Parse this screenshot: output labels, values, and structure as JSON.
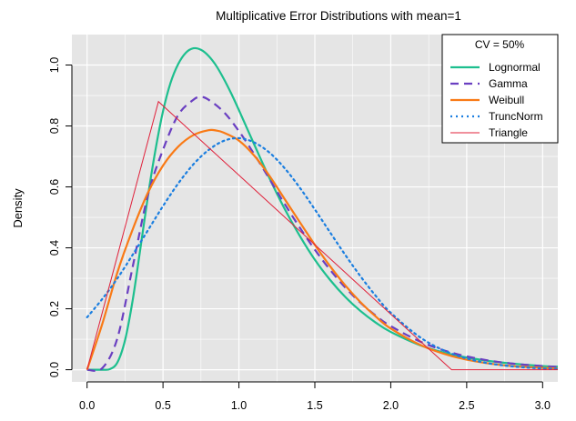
{
  "chart_data": {
    "type": "line",
    "title": "Multiplicative Error Distributions with mean=1",
    "xlabel": "",
    "ylabel": "Density",
    "xlim": [
      -0.1,
      3.1
    ],
    "ylim": [
      -0.04,
      1.1
    ],
    "x_ticks": [
      0.0,
      0.5,
      1.0,
      1.5,
      2.0,
      2.5,
      3.0
    ],
    "x_tick_labels": [
      "0.0",
      "0.5",
      "1.0",
      "1.5",
      "2.0",
      "2.5",
      "3.0"
    ],
    "y_ticks": [
      0.0,
      0.2,
      0.4,
      0.6,
      0.8,
      1.0
    ],
    "y_tick_labels": [
      "0.0",
      "0.2",
      "0.4",
      "0.6",
      "0.8",
      "1.0"
    ],
    "background": "#e5e5e5",
    "grid": true,
    "legend": {
      "title": "CV = 50%",
      "position": "top-right"
    },
    "series": [
      {
        "name": "Lognormal",
        "color": "#1dbf8e",
        "style": "solid",
        "x": [
          0.0,
          0.1,
          0.15,
          0.2,
          0.25,
          0.3,
          0.35,
          0.4,
          0.45,
          0.5,
          0.55,
          0.6,
          0.65,
          0.7,
          0.75,
          0.8,
          0.85,
          0.9,
          0.95,
          1.0,
          1.1,
          1.2,
          1.3,
          1.4,
          1.5,
          1.6,
          1.7,
          1.8,
          1.9,
          2.0,
          2.2,
          2.4,
          2.6,
          2.8,
          3.0,
          3.1
        ],
        "y": [
          0.0,
          0.0,
          0.002,
          0.024,
          0.097,
          0.227,
          0.394,
          0.567,
          0.72,
          0.848,
          0.942,
          1.003,
          1.04,
          1.055,
          1.05,
          1.03,
          0.998,
          0.955,
          0.906,
          0.852,
          0.74,
          0.63,
          0.529,
          0.44,
          0.361,
          0.295,
          0.239,
          0.193,
          0.155,
          0.124,
          0.079,
          0.05,
          0.032,
          0.02,
          0.012,
          0.01
        ]
      },
      {
        "name": "Gamma",
        "color": "#6a3fc1",
        "style": "dashed",
        "x": [
          0.0,
          0.1,
          0.2,
          0.3,
          0.4,
          0.5,
          0.6,
          0.7,
          0.75,
          0.8,
          0.9,
          1.0,
          1.1,
          1.2,
          1.3,
          1.4,
          1.5,
          1.6,
          1.7,
          1.8,
          1.9,
          2.0,
          2.2,
          2.4,
          2.6,
          2.8,
          3.0,
          3.1
        ],
        "y": [
          0.0,
          0.005,
          0.104,
          0.337,
          0.572,
          0.722,
          0.836,
          0.886,
          0.895,
          0.886,
          0.846,
          0.783,
          0.708,
          0.627,
          0.545,
          0.467,
          0.394,
          0.328,
          0.27,
          0.22,
          0.178,
          0.143,
          0.091,
          0.056,
          0.034,
          0.02,
          0.012,
          0.009
        ]
      },
      {
        "name": "Weibull",
        "color": "#f97a16",
        "style": "solid",
        "x": [
          0.0,
          0.1,
          0.2,
          0.3,
          0.4,
          0.5,
          0.6,
          0.7,
          0.8,
          0.85,
          0.9,
          1.0,
          1.1,
          1.2,
          1.3,
          1.4,
          1.5,
          1.6,
          1.7,
          1.8,
          1.9,
          2.0,
          2.2,
          2.4,
          2.6,
          2.8,
          3.0,
          3.1
        ],
        "y": [
          0.0,
          0.15,
          0.32,
          0.46,
          0.58,
          0.67,
          0.732,
          0.77,
          0.786,
          0.785,
          0.778,
          0.752,
          0.703,
          0.637,
          0.561,
          0.485,
          0.41,
          0.34,
          0.277,
          0.222,
          0.175,
          0.135,
          0.08,
          0.045,
          0.024,
          0.012,
          0.006,
          0.004
        ]
      },
      {
        "name": "TruncNorm",
        "color": "#1a7ee0",
        "style": "dotted",
        "x": [
          0.0,
          0.1,
          0.2,
          0.3,
          0.4,
          0.5,
          0.6,
          0.7,
          0.8,
          0.9,
          1.0,
          1.1,
          1.2,
          1.3,
          1.4,
          1.5,
          1.6,
          1.7,
          1.8,
          1.9,
          2.0,
          2.2,
          2.4,
          2.6,
          2.8,
          3.0,
          3.1
        ],
        "y": [
          0.172,
          0.232,
          0.3,
          0.377,
          0.457,
          0.537,
          0.611,
          0.674,
          0.721,
          0.751,
          0.76,
          0.746,
          0.713,
          0.662,
          0.598,
          0.526,
          0.451,
          0.377,
          0.307,
          0.243,
          0.187,
          0.104,
          0.053,
          0.025,
          0.011,
          0.004,
          0.003
        ]
      },
      {
        "name": "Triangle",
        "color": "#e0203a",
        "style": "solid",
        "x": [
          0.0,
          0.47,
          2.4,
          3.1
        ],
        "y": [
          0.0,
          0.88,
          0.0,
          0.0
        ]
      }
    ]
  }
}
